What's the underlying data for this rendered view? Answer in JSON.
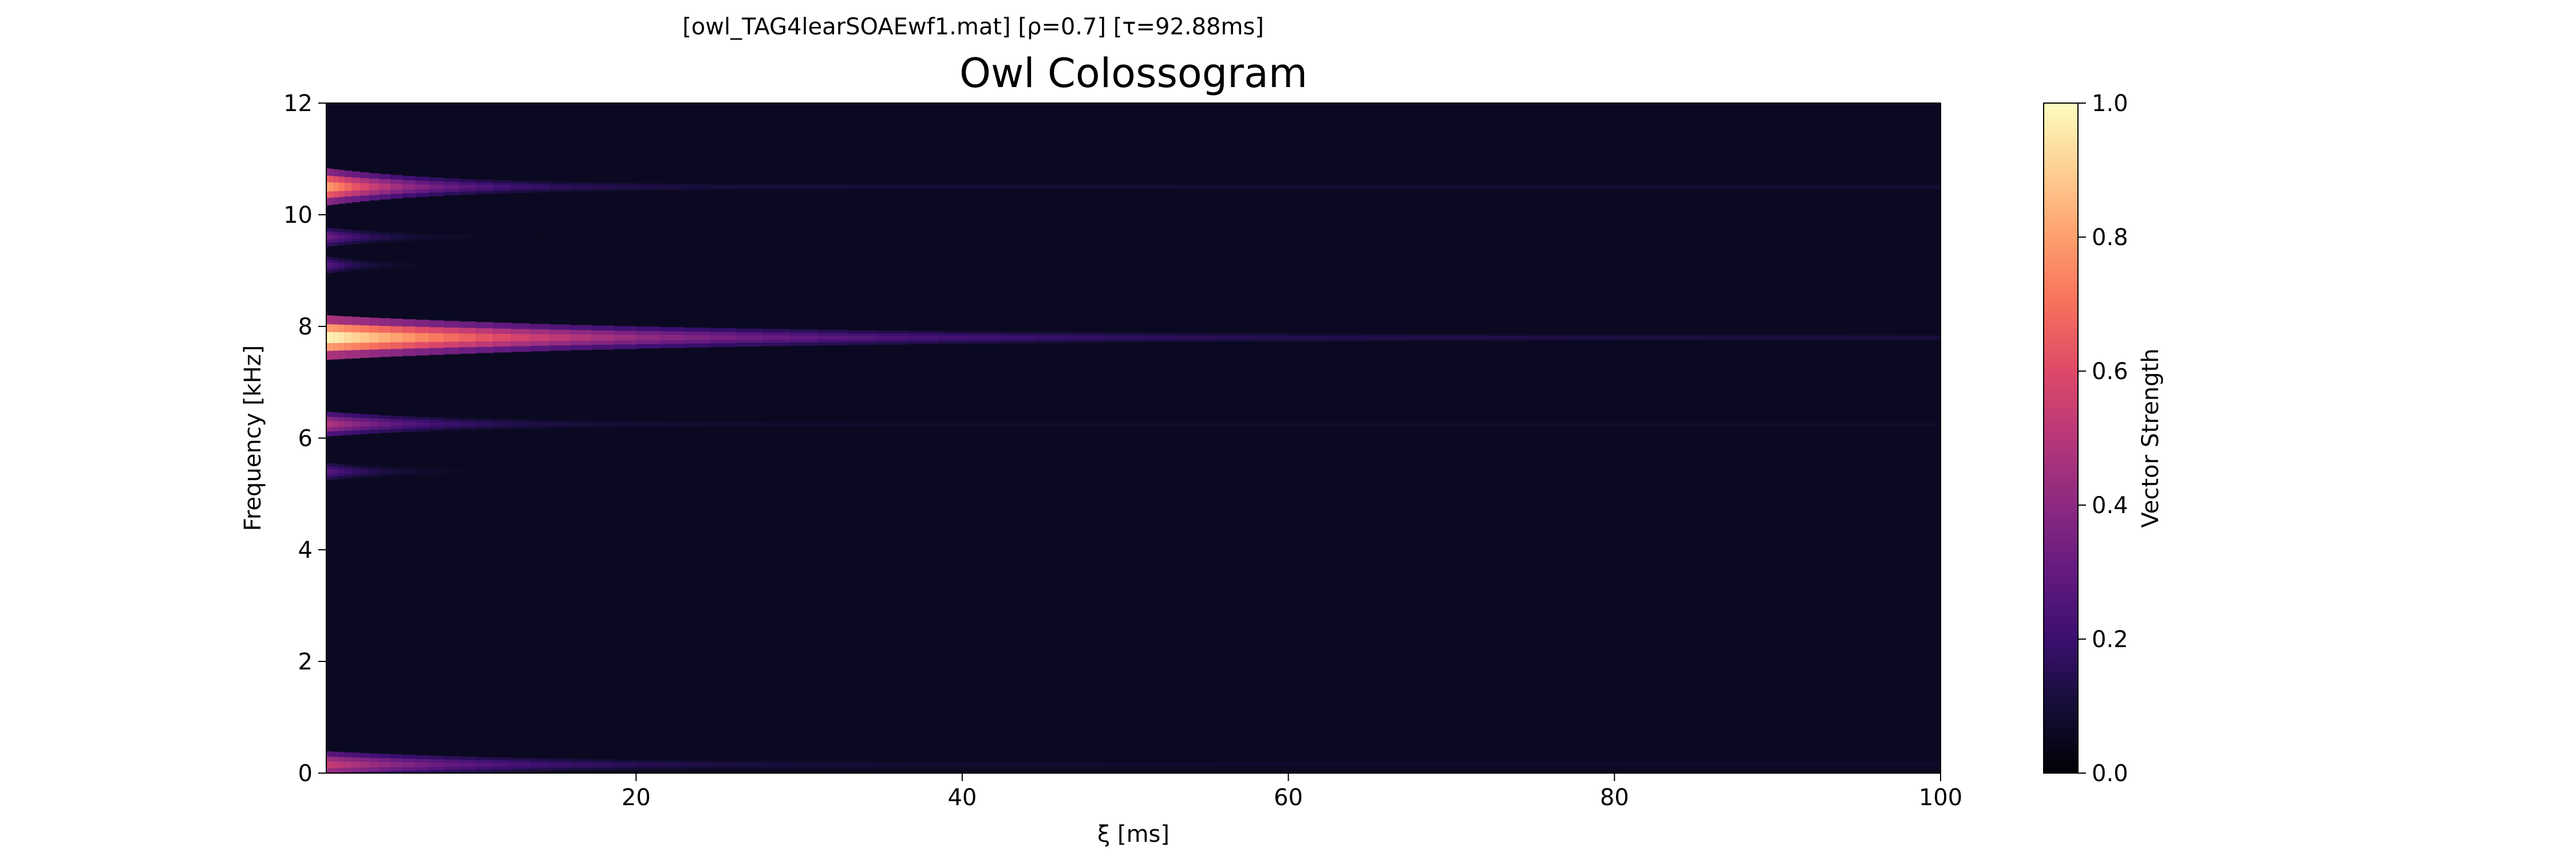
{
  "chart_data": {
    "type": "heatmap",
    "supertitle": "[owl_TAG4learSOAEwf1.mat]   [ρ=0.7]   [τ=92.88ms]",
    "title": "Owl Colossogram",
    "xlabel": "ξ [ms]",
    "ylabel": "Frequency [kHz]",
    "xlim": [
      1,
      100
    ],
    "ylim": [
      0,
      12
    ],
    "x_ticks": [
      20,
      40,
      60,
      80,
      100
    ],
    "y_ticks": [
      0,
      2,
      4,
      6,
      8,
      10,
      12
    ],
    "colormap": "magma",
    "colorbar": {
      "label": "Vector Strength",
      "range": [
        0,
        1
      ],
      "ticks": [
        "0.0",
        "0.2",
        "0.4",
        "0.6",
        "0.8",
        "1.0"
      ]
    },
    "background_level": 0.05,
    "peaks": [
      {
        "freq_khz": 10.5,
        "peak_value": 0.82,
        "decay_ms": 6
      },
      {
        "freq_khz": 9.6,
        "peak_value": 0.35,
        "decay_ms": 3
      },
      {
        "freq_khz": 9.1,
        "peak_value": 0.3,
        "decay_ms": 2
      },
      {
        "freq_khz": 7.8,
        "peak_value": 1.0,
        "decay_ms": 18
      },
      {
        "freq_khz": 6.25,
        "peak_value": 0.5,
        "decay_ms": 6
      },
      {
        "freq_khz": 5.4,
        "peak_value": 0.3,
        "decay_ms": 3
      },
      {
        "freq_khz": 0.15,
        "peak_value": 0.55,
        "decay_ms": 10
      }
    ]
  }
}
